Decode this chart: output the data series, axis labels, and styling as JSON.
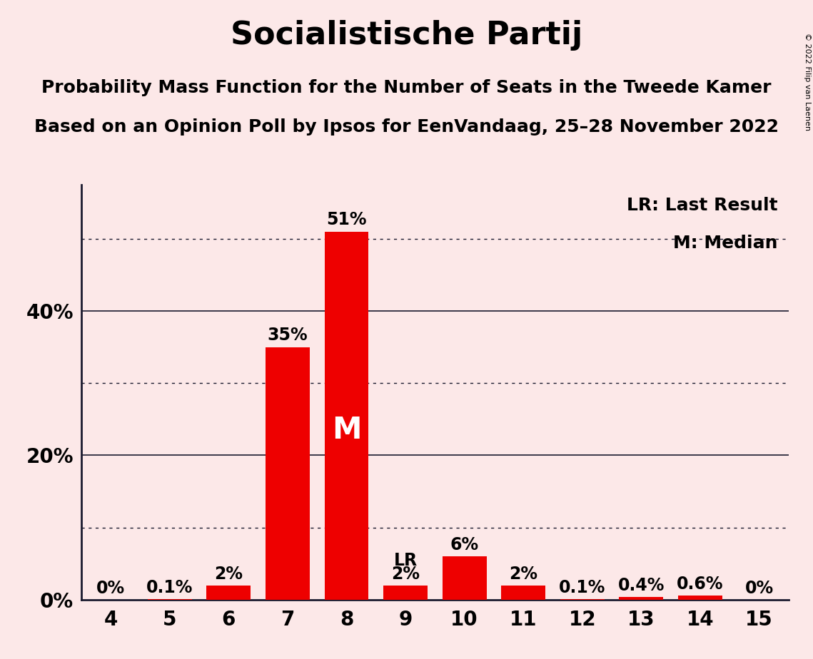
{
  "title": "Socialistische Partij",
  "subtitle1": "Probability Mass Function for the Number of Seats in the Tweede Kamer",
  "subtitle2": "Based on an Opinion Poll by Ipsos for EenVandaag, 25–28 November 2022",
  "copyright_text": "© 2022 Filip van Laenen",
  "seats": [
    4,
    5,
    6,
    7,
    8,
    9,
    10,
    11,
    12,
    13,
    14,
    15
  ],
  "probabilities": [
    0.0,
    0.001,
    0.02,
    0.35,
    0.51,
    0.02,
    0.06,
    0.02,
    0.001,
    0.004,
    0.006,
    0.0
  ],
  "bar_labels": [
    "0%",
    "0.1%",
    "2%",
    "35%",
    "51%",
    "2%",
    "6%",
    "2%",
    "0.1%",
    "0.4%",
    "0.6%",
    "0%"
  ],
  "bar_color": "#ee0000",
  "background_color": "#fce8e8",
  "median_seat": 8,
  "last_result_seat": 9,
  "median_label": "M",
  "lr_label": "LR",
  "legend_lr": "LR: Last Result",
  "legend_m": "M: Median",
  "solid_yticks": [
    0.0,
    0.2,
    0.4
  ],
  "solid_ytick_labels": [
    "0%",
    "20%",
    "40%"
  ],
  "dotted_yticks": [
    0.1,
    0.3,
    0.5
  ],
  "ylim": [
    0,
    0.575
  ],
  "title_fontsize": 32,
  "subtitle_fontsize": 18,
  "bar_label_fontsize": 17,
  "axis_tick_fontsize": 20,
  "legend_fontsize": 18,
  "m_fontsize": 30
}
